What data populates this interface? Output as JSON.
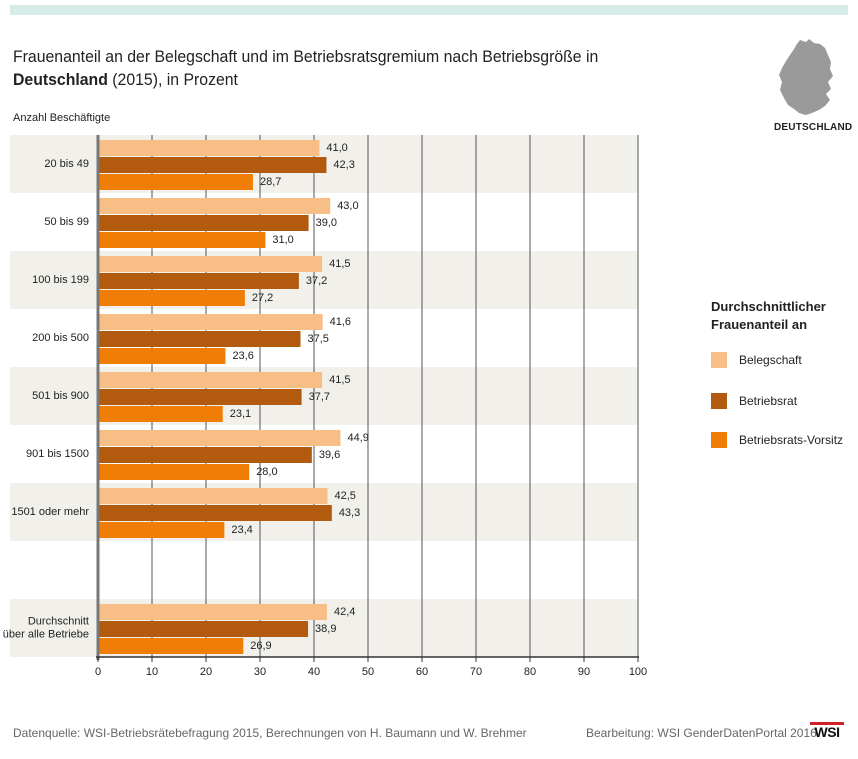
{
  "title_part1": "Frauenanteil an der Belegschaft und im Betriebsratsgremium nach Betriebsgröße in",
  "title_bold": "Deutschland",
  "title_part2": " (2015), in Prozent",
  "map_label": "DEUTSCHLAND",
  "legend": {
    "title_line1": "Durchschnittlicher",
    "title_line2": "Frauenanteil an",
    "items": [
      {
        "label": "Belegschaft",
        "color": "#f7bf85"
      },
      {
        "label": "Betriebsrat",
        "color": "#b25a0d"
      },
      {
        "label": "Betriebsrats-Vorsitz",
        "color": "#f07e06"
      }
    ]
  },
  "footer": {
    "source": "Datenquelle: WSI-Betriebsrätebefragung 2015, Berechnungen von H. Baumann und W. Brehmer",
    "editor": "Bearbeitung: WSI GenderDatenPortal 2016",
    "logo": "WSI"
  },
  "chart_data": {
    "type": "bar",
    "orientation": "horizontal",
    "ylabel": "Anzahl Beschäftigte",
    "xlim": [
      0,
      100
    ],
    "xticks": [
      0,
      10,
      20,
      30,
      40,
      50,
      60,
      70,
      80,
      90,
      100
    ],
    "grid": true,
    "legend_position": "right",
    "categories": [
      {
        "label": "20 bis 49",
        "lines": [
          "20 bis 49"
        ]
      },
      {
        "label": "50 bis 99",
        "lines": [
          "50 bis 99"
        ]
      },
      {
        "label": "100 bis 199",
        "lines": [
          "100 bis 199"
        ]
      },
      {
        "label": "200 bis 500",
        "lines": [
          "200 bis 500"
        ]
      },
      {
        "label": "501 bis 900",
        "lines": [
          "501 bis 900"
        ]
      },
      {
        "label": "901 bis 1500",
        "lines": [
          "901 bis 1500"
        ]
      },
      {
        "label": "1501 oder mehr",
        "lines": [
          "1501 oder mehr"
        ]
      },
      {
        "label": "",
        "lines": []
      },
      {
        "label": "Durchschnitt über alle Betriebe",
        "lines": [
          "Durchschnitt",
          "über alle Betriebe"
        ]
      }
    ],
    "series": [
      {
        "name": "Belegschaft",
        "color": "#f7bf85",
        "values": [
          41.0,
          43.0,
          41.5,
          41.6,
          41.5,
          44.9,
          42.5,
          null,
          42.4
        ],
        "labels": [
          "41,0",
          "43,0",
          "41,5",
          "41,6",
          "41,5",
          "44,9",
          "42,5",
          "",
          "42,4"
        ]
      },
      {
        "name": "Betriebsrat",
        "color": "#b25a0d",
        "values": [
          42.3,
          39.0,
          37.2,
          37.5,
          37.7,
          39.6,
          43.3,
          null,
          38.9
        ],
        "labels": [
          "42,3",
          "39,0",
          "37,2",
          "37,5",
          "37,7",
          "39,6",
          "43,3",
          "",
          "38,9"
        ]
      },
      {
        "name": "Betriebsrats-Vorsitz",
        "color": "#f07e06",
        "values": [
          28.7,
          31.0,
          27.2,
          23.6,
          23.1,
          28.0,
          23.4,
          null,
          26.9
        ],
        "labels": [
          "28,7",
          "31,0",
          "27,2",
          "23,6",
          "23,1",
          "28,0",
          "23,4",
          "",
          "26,9"
        ]
      }
    ]
  }
}
